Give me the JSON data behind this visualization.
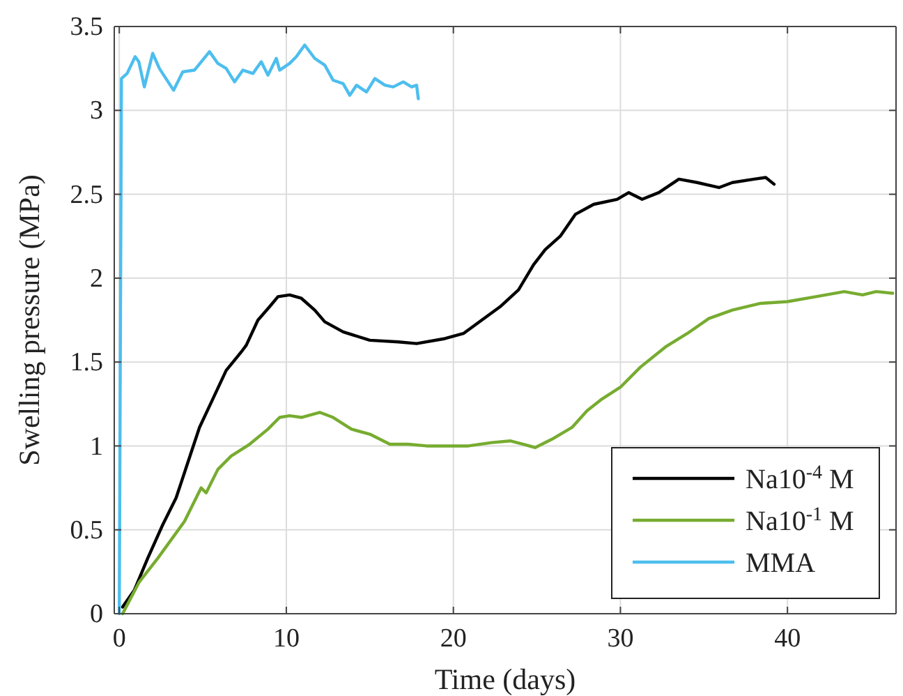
{
  "chart_data": {
    "type": "line",
    "xlabel": "Time (days)",
    "ylabel": "Swelling pressure (MPa)",
    "xlim": [
      -0.3,
      46.5
    ],
    "ylim": [
      0,
      3.5
    ],
    "xticks": [
      0,
      10,
      20,
      30,
      40
    ],
    "yticks": [
      0,
      0.5,
      1,
      1.5,
      2,
      2.5,
      3,
      3.5
    ],
    "grid": true,
    "legend": "bottom right",
    "line_style": "solid",
    "series": [
      {
        "name": "Na10$^{-4}$ M",
        "color": "#000000",
        "x": [
          0.2,
          0.9,
          1.7,
          2.6,
          3.4,
          4.1,
          4.8,
          5.6,
          6.4,
          7.3,
          7.6,
          8.3,
          9.0,
          9.5,
          10.2,
          10.9,
          11.7,
          12.3,
          13.4,
          15.0,
          16.7,
          17.8,
          19.5,
          20.6,
          21.7,
          22.8,
          23.9,
          24.8,
          25.5,
          26.4,
          27.3,
          28.4,
          29.8,
          30.5,
          31.3,
          32.3,
          33.5,
          34.6,
          35.9,
          36.7,
          38.0,
          38.7,
          39.2
        ],
        "values": [
          0.04,
          0.14,
          0.33,
          0.53,
          0.69,
          0.9,
          1.11,
          1.28,
          1.45,
          1.56,
          1.6,
          1.75,
          1.83,
          1.89,
          1.9,
          1.88,
          1.81,
          1.74,
          1.68,
          1.63,
          1.62,
          1.61,
          1.64,
          1.67,
          1.75,
          1.83,
          1.93,
          2.08,
          2.17,
          2.25,
          2.38,
          2.44,
          2.47,
          2.51,
          2.47,
          2.51,
          2.59,
          2.57,
          2.54,
          2.57,
          2.59,
          2.6,
          2.56
        ]
      },
      {
        "name": "Na10$^{-1}$ M",
        "color": "#77ac30",
        "x": [
          0.2,
          1.2,
          2.3,
          3.9,
          4.9,
          5.2,
          5.9,
          6.7,
          7.8,
          8.9,
          9.6,
          10.2,
          10.9,
          12.0,
          12.8,
          13.9,
          15.0,
          16.2,
          17.3,
          18.4,
          19.5,
          20.9,
          22.3,
          23.4,
          24.2,
          24.9,
          25.9,
          27.1,
          28.0,
          28.9,
          30.0,
          31.2,
          32.7,
          34.0,
          35.3,
          36.7,
          38.4,
          40.0,
          41.7,
          43.4,
          44.5,
          45.3,
          46.3
        ],
        "values": [
          0.0,
          0.19,
          0.33,
          0.55,
          0.75,
          0.72,
          0.86,
          0.94,
          1.01,
          1.1,
          1.17,
          1.18,
          1.17,
          1.2,
          1.17,
          1.1,
          1.07,
          1.01,
          1.01,
          1.0,
          1.0,
          1.0,
          1.02,
          1.03,
          1.01,
          0.99,
          1.04,
          1.11,
          1.21,
          1.28,
          1.35,
          1.47,
          1.59,
          1.67,
          1.76,
          1.81,
          1.85,
          1.86,
          1.89,
          1.92,
          1.9,
          1.92,
          1.91
        ]
      },
      {
        "name": "MMA",
        "color": "#4dbeee",
        "x": [
          0,
          0.13,
          0.47,
          0.95,
          1.17,
          1.5,
          2.0,
          2.4,
          3.25,
          3.8,
          4.5,
          5.4,
          5.9,
          6.4,
          6.9,
          7.4,
          8.0,
          8.5,
          8.9,
          9.4,
          9.6,
          10.2,
          10.6,
          11.1,
          11.7,
          12.3,
          12.8,
          13.4,
          13.8,
          14.2,
          14.8,
          15.3,
          15.9,
          16.4,
          17.0,
          17.5,
          17.8,
          17.9
        ],
        "values": [
          0,
          3.19,
          3.22,
          3.32,
          3.29,
          3.14,
          3.34,
          3.25,
          3.12,
          3.23,
          3.24,
          3.35,
          3.28,
          3.25,
          3.17,
          3.24,
          3.22,
          3.29,
          3.21,
          3.31,
          3.24,
          3.28,
          3.32,
          3.39,
          3.31,
          3.27,
          3.18,
          3.16,
          3.09,
          3.15,
          3.11,
          3.19,
          3.15,
          3.14,
          3.17,
          3.14,
          3.15,
          3.07
        ]
      }
    ]
  }
}
